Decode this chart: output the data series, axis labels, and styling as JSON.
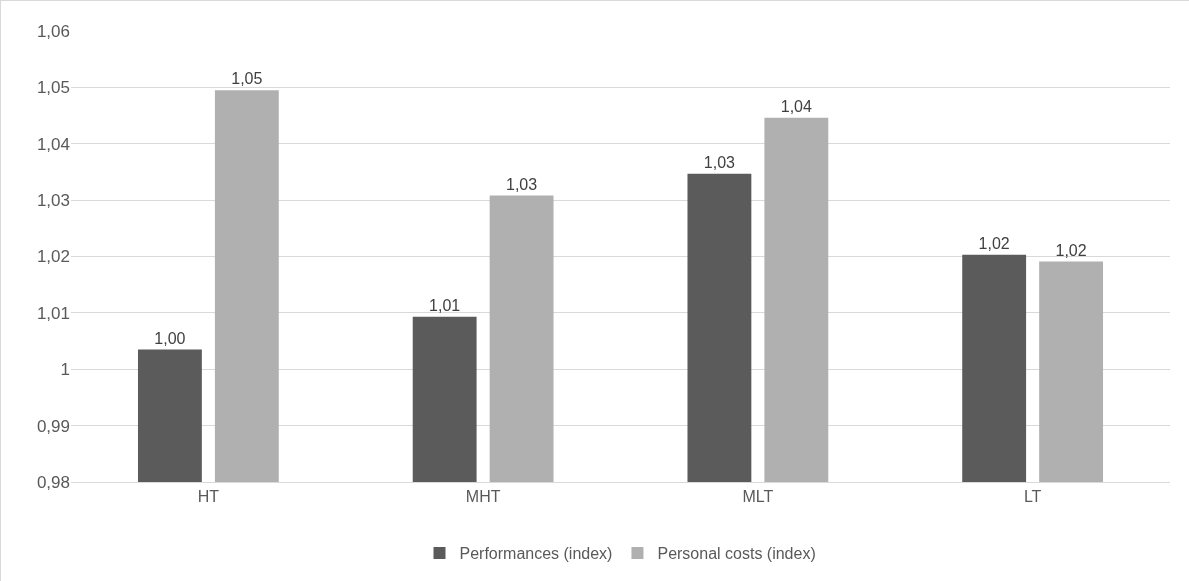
{
  "chart_data": {
    "type": "bar",
    "categories": [
      "HT",
      "MHT",
      "MLT",
      "LT"
    ],
    "series": [
      {
        "name": "Performances (index)",
        "color": "#5b5b5b",
        "values": [
          1.0035,
          1.0093,
          1.0347,
          1.0203
        ],
        "value_labels": [
          "1,00",
          "1,01",
          "1,03",
          "1,02"
        ]
      },
      {
        "name": "Personal costs (index)",
        "color": "#b0b0b0",
        "values": [
          1.0495,
          1.0308,
          1.0446,
          1.0191
        ],
        "value_labels": [
          "1,05",
          "1,03",
          "1,04",
          "1,02"
        ]
      }
    ],
    "ylim": [
      0.98,
      1.06
    ],
    "yticks": [
      {
        "value": 0.98,
        "label": "0,98"
      },
      {
        "value": 0.99,
        "label": "0,99"
      },
      1,
      {
        "value": 1.01,
        "label": "1,01"
      },
      {
        "value": 1.02,
        "label": "1,02"
      },
      {
        "value": 1.03,
        "label": "1,03"
      },
      {
        "value": 1.04,
        "label": "1,04"
      },
      {
        "value": 1.05,
        "label": "1,05"
      },
      {
        "value": 1.06,
        "label": "1,06"
      }
    ],
    "grid": "y",
    "legend": "bottom"
  }
}
